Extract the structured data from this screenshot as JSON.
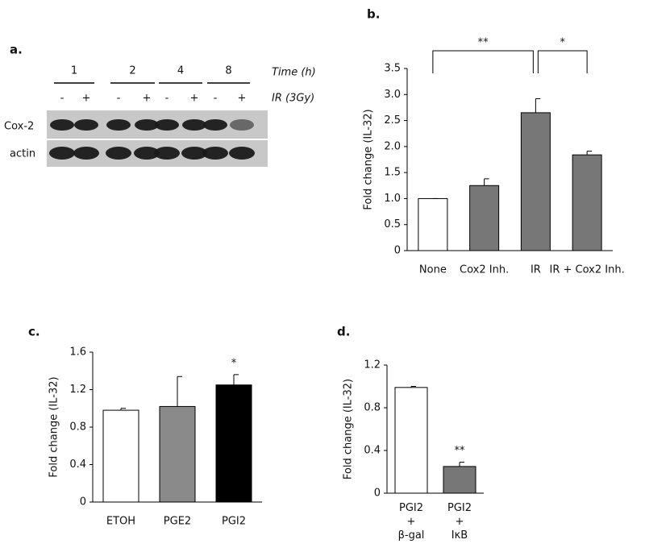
{
  "blot": {
    "label": "a.",
    "time_label": "Time (h)",
    "treatment_label": "IR (3Gy)",
    "time_points": [
      "1",
      "2",
      "4",
      "8"
    ],
    "lanes": [
      "-",
      "+",
      "-",
      "+",
      "-",
      "+",
      "-",
      "+"
    ],
    "rows": [
      "Cox-2",
      "actin"
    ]
  },
  "chart_data": [
    {
      "type": "bar",
      "panel_label": "b.",
      "y_label": "Fold change (IL-32)",
      "categories": [
        "None",
        "Cox2 Inh.",
        "IR",
        "IR + Cox2 Inh."
      ],
      "values": [
        1.0,
        1.25,
        2.65,
        1.84
      ],
      "errors": [
        0.0,
        0.13,
        0.27,
        0.07
      ],
      "colors": [
        "#ffffff",
        "#777777",
        "#777777",
        "#777777"
      ],
      "brackets": [
        "**",
        "*"
      ],
      "ylim": [
        0,
        3.5
      ],
      "yticks": [
        0,
        0.5,
        {
          "value": 1,
          "label": "1.0"
        },
        1.5,
        {
          "value": 2,
          "label": "2.0"
        },
        2.5,
        {
          "value": 3,
          "label": "3.0"
        },
        3.5
      ]
    },
    {
      "type": "bar",
      "panel_label": "c.",
      "y_label": "Fold change (IL-32)",
      "categories": [
        "ETOH",
        "PGE2",
        "PGI2"
      ],
      "values": [
        0.98,
        1.02,
        1.25
      ],
      "errors": [
        0.02,
        0.32,
        0.11
      ],
      "colors": [
        "#ffffff",
        "#8a8a8a",
        "#000000"
      ],
      "significance": [
        null,
        null,
        "*"
      ],
      "ylim": [
        0,
        1.6
      ],
      "yticks": [
        0,
        0.4,
        0.8,
        1.2,
        1.6
      ]
    },
    {
      "type": "bar",
      "panel_label": "d.",
      "y_label": "Fold change (IL-32)",
      "categories": [
        [
          "PGI2",
          "+",
          "β-gal"
        ],
        [
          "PGI2",
          "+",
          "IκB"
        ]
      ],
      "values": [
        0.99,
        0.25
      ],
      "errors": [
        0.01,
        0.04
      ],
      "colors": [
        "#ffffff",
        "#777777"
      ],
      "significance": [
        null,
        "**"
      ],
      "ylim": [
        0,
        1.2
      ],
      "yticks": [
        0,
        0.4,
        0.8,
        1.2
      ]
    }
  ]
}
